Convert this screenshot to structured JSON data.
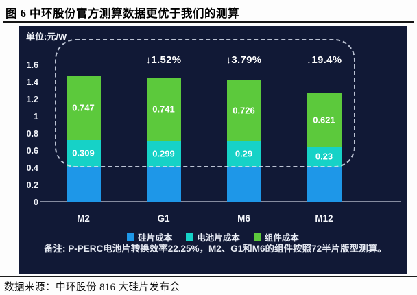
{
  "page": {
    "title": "图 6 中环股份官方测算数据更优于我们的测算",
    "source": "数据来源：中环股份 816 大硅片发布会"
  },
  "panel": {
    "unit_label": "单位:元/W",
    "note": "备注: P-PERC电池片转换效率22.25%，M2、G1和M6的组件按照72半片版型测算。"
  },
  "colors": {
    "panel_background": "#111936",
    "silicon_blue": "#1e97e8",
    "cell_cyan": "#16d2c7",
    "module_green": "#5cc93c",
    "dashed_border": "#dbe2f0",
    "axis_line": "#868ca0",
    "text_on_panel": "#ffffff"
  },
  "chart_data": {
    "type": "bar",
    "stacked": true,
    "title": "",
    "unit": "元/W",
    "categories": [
      "M2",
      "G1",
      "M6",
      "M12"
    ],
    "series": [
      {
        "name": "硅片成本",
        "color": "#1e97e8",
        "values": [
          0.42,
          0.42,
          0.42,
          0.42
        ],
        "value_labels": [
          "",
          "",
          "",
          ""
        ]
      },
      {
        "name": "电池片成本",
        "color": "#16d2c7",
        "values": [
          0.309,
          0.299,
          0.29,
          0.23
        ],
        "value_labels": [
          "0.309",
          "0.299",
          "0.29",
          "0.23"
        ]
      },
      {
        "name": "组件成本",
        "color": "#5cc93c",
        "values": [
          0.747,
          0.741,
          0.726,
          0.621
        ],
        "value_labels": [
          "0.747",
          "0.741",
          "0.726",
          "0.621"
        ]
      }
    ],
    "annotations": [
      "",
      "↓1.52%",
      "↓3.79%",
      "↓19.4%"
    ],
    "ylim": [
      0,
      1.6
    ],
    "yticks": [
      "0",
      "0.2",
      "0.4",
      "0.6",
      "0.8",
      "1",
      "1.2",
      "1.4",
      "1.6"
    ],
    "xlabel": "",
    "ylabel": "",
    "grid": false,
    "legend": [
      "硅片成本",
      "电池片成本",
      "组件成本"
    ],
    "legend_position": "bottom"
  }
}
